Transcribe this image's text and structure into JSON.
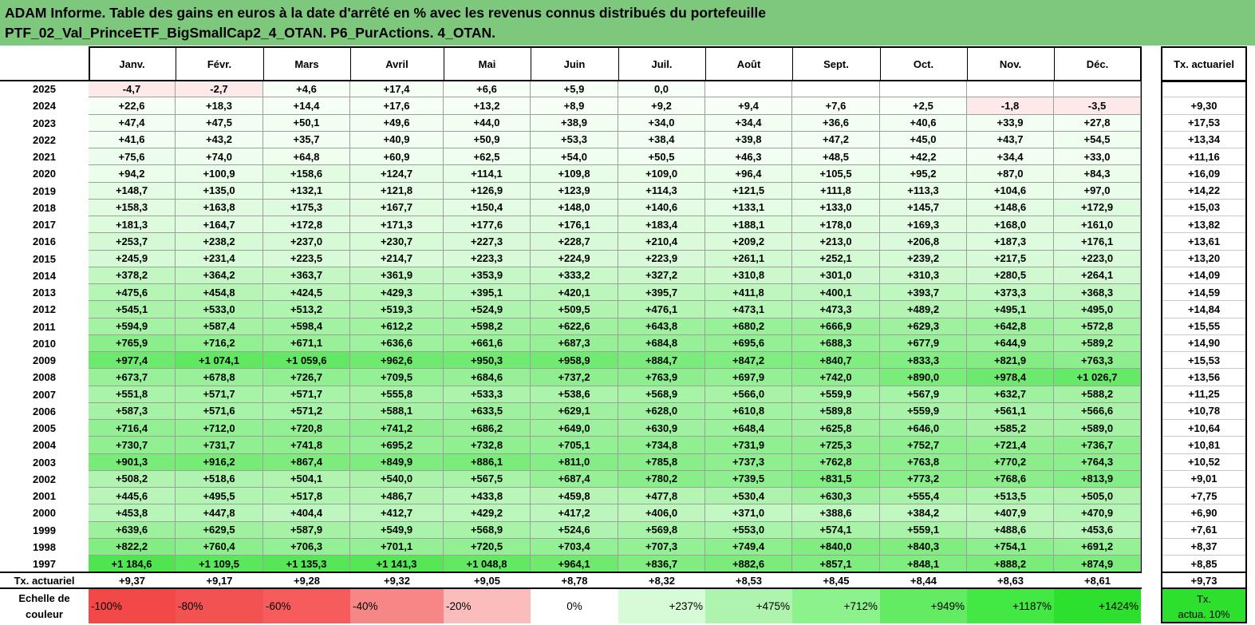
{
  "title_lines": [
    "ADAM Informe. Table des gains en euros à la date d'arrêté en % avec les revenus connus distribués du portefeuille",
    "PTF_02_Val_PrinceETF_BigSmallCap2_4_OTAN. P6_PurActions. 4_OTAN."
  ],
  "months": [
    "Janv.",
    "Févr.",
    "Mars",
    "Avril",
    "Mai",
    "Juin",
    "Juil.",
    "Août",
    "Sept.",
    "Oct.",
    "Nov.",
    "Déc."
  ],
  "annual_header": "Tx. actuariel",
  "rows": [
    {
      "year": "2025",
      "values": [
        "-4,7",
        "-2,7",
        "+4,6",
        "+17,4",
        "+6,6",
        "+5,9",
        "0,0",
        "",
        "",
        "",
        "",
        ""
      ],
      "rate": ""
    },
    {
      "year": "2024",
      "values": [
        "+22,6",
        "+18,3",
        "+14,4",
        "+17,6",
        "+13,2",
        "+8,9",
        "+9,2",
        "+9,4",
        "+7,6",
        "+2,5",
        "-1,8",
        "-3,5"
      ],
      "rate": "+9,30"
    },
    {
      "year": "2023",
      "values": [
        "+47,4",
        "+47,5",
        "+50,1",
        "+49,6",
        "+44,0",
        "+38,9",
        "+34,0",
        "+34,4",
        "+36,6",
        "+40,6",
        "+33,9",
        "+27,8"
      ],
      "rate": "+17,53"
    },
    {
      "year": "2022",
      "values": [
        "+41,6",
        "+43,2",
        "+35,7",
        "+40,9",
        "+50,9",
        "+53,3",
        "+38,4",
        "+39,8",
        "+47,2",
        "+45,0",
        "+43,7",
        "+54,5"
      ],
      "rate": "+13,34"
    },
    {
      "year": "2021",
      "values": [
        "+75,6",
        "+74,0",
        "+64,8",
        "+60,9",
        "+62,5",
        "+54,0",
        "+50,5",
        "+46,3",
        "+48,5",
        "+42,2",
        "+34,4",
        "+33,0"
      ],
      "rate": "+11,16"
    },
    {
      "year": "2020",
      "values": [
        "+94,2",
        "+100,9",
        "+158,6",
        "+124,7",
        "+114,1",
        "+109,8",
        "+109,0",
        "+96,4",
        "+105,5",
        "+95,2",
        "+87,0",
        "+84,3"
      ],
      "rate": "+16,09"
    },
    {
      "year": "2019",
      "values": [
        "+148,7",
        "+135,0",
        "+132,1",
        "+121,8",
        "+126,9",
        "+123,9",
        "+114,3",
        "+121,5",
        "+111,8",
        "+113,3",
        "+104,6",
        "+97,0"
      ],
      "rate": "+14,22"
    },
    {
      "year": "2018",
      "values": [
        "+158,3",
        "+163,8",
        "+175,3",
        "+167,7",
        "+150,4",
        "+148,0",
        "+140,6",
        "+133,1",
        "+133,0",
        "+145,7",
        "+148,6",
        "+172,9"
      ],
      "rate": "+15,03"
    },
    {
      "year": "2017",
      "values": [
        "+181,3",
        "+164,7",
        "+172,8",
        "+171,3",
        "+177,6",
        "+176,1",
        "+183,4",
        "+188,1",
        "+178,0",
        "+169,3",
        "+168,0",
        "+161,0"
      ],
      "rate": "+13,82"
    },
    {
      "year": "2016",
      "values": [
        "+253,7",
        "+238,2",
        "+237,0",
        "+230,7",
        "+227,3",
        "+228,7",
        "+210,4",
        "+209,2",
        "+213,0",
        "+206,8",
        "+187,3",
        "+176,1"
      ],
      "rate": "+13,61"
    },
    {
      "year": "2015",
      "values": [
        "+245,9",
        "+231,4",
        "+223,5",
        "+214,7",
        "+223,3",
        "+224,9",
        "+223,9",
        "+261,1",
        "+252,1",
        "+239,2",
        "+217,5",
        "+223,0"
      ],
      "rate": "+13,20"
    },
    {
      "year": "2014",
      "values": [
        "+378,2",
        "+364,2",
        "+363,7",
        "+361,9",
        "+353,9",
        "+333,2",
        "+327,2",
        "+310,8",
        "+301,0",
        "+310,3",
        "+280,5",
        "+264,1"
      ],
      "rate": "+14,09"
    },
    {
      "year": "2013",
      "values": [
        "+475,6",
        "+454,8",
        "+424,5",
        "+429,3",
        "+395,1",
        "+420,1",
        "+395,7",
        "+411,8",
        "+400,1",
        "+393,7",
        "+373,3",
        "+368,3"
      ],
      "rate": "+14,59"
    },
    {
      "year": "2012",
      "values": [
        "+545,1",
        "+533,0",
        "+513,2",
        "+519,3",
        "+524,9",
        "+509,5",
        "+476,1",
        "+473,1",
        "+473,3",
        "+489,2",
        "+495,1",
        "+495,0"
      ],
      "rate": "+14,84"
    },
    {
      "year": "2011",
      "values": [
        "+594,9",
        "+587,4",
        "+598,4",
        "+612,2",
        "+598,2",
        "+622,6",
        "+643,8",
        "+680,2",
        "+666,9",
        "+629,3",
        "+642,8",
        "+572,8"
      ],
      "rate": "+15,55"
    },
    {
      "year": "2010",
      "values": [
        "+765,9",
        "+716,2",
        "+671,1",
        "+636,6",
        "+661,6",
        "+687,3",
        "+684,8",
        "+695,6",
        "+688,3",
        "+677,9",
        "+644,9",
        "+589,2"
      ],
      "rate": "+14,90"
    },
    {
      "year": "2009",
      "values": [
        "+977,4",
        "+1 074,1",
        "+1 059,6",
        "+962,6",
        "+950,3",
        "+958,9",
        "+884,7",
        "+847,2",
        "+840,7",
        "+833,3",
        "+821,9",
        "+763,3"
      ],
      "rate": "+15,53"
    },
    {
      "year": "2008",
      "values": [
        "+673,7",
        "+678,8",
        "+726,7",
        "+709,5",
        "+684,6",
        "+737,2",
        "+763,9",
        "+697,9",
        "+742,0",
        "+890,0",
        "+978,4",
        "+1 026,7"
      ],
      "rate": "+13,56"
    },
    {
      "year": "2007",
      "values": [
        "+551,8",
        "+571,7",
        "+571,7",
        "+555,8",
        "+533,3",
        "+538,6",
        "+568,9",
        "+566,0",
        "+559,9",
        "+567,9",
        "+632,7",
        "+588,2"
      ],
      "rate": "+11,25"
    },
    {
      "year": "2006",
      "values": [
        "+587,3",
        "+571,6",
        "+571,2",
        "+588,1",
        "+633,5",
        "+629,1",
        "+628,0",
        "+610,8",
        "+589,8",
        "+559,9",
        "+561,1",
        "+566,6"
      ],
      "rate": "+10,78"
    },
    {
      "year": "2005",
      "values": [
        "+716,4",
        "+712,0",
        "+720,8",
        "+741,2",
        "+686,2",
        "+649,0",
        "+630,9",
        "+648,4",
        "+625,8",
        "+646,0",
        "+585,2",
        "+589,0"
      ],
      "rate": "+10,64"
    },
    {
      "year": "2004",
      "values": [
        "+730,7",
        "+731,7",
        "+741,8",
        "+695,2",
        "+732,8",
        "+705,1",
        "+734,8",
        "+731,9",
        "+725,3",
        "+752,7",
        "+721,4",
        "+736,7"
      ],
      "rate": "+10,81"
    },
    {
      "year": "2003",
      "values": [
        "+901,3",
        "+916,2",
        "+867,4",
        "+849,9",
        "+886,1",
        "+811,0",
        "+785,8",
        "+737,3",
        "+762,8",
        "+763,8",
        "+770,2",
        "+764,3"
      ],
      "rate": "+10,52"
    },
    {
      "year": "2002",
      "values": [
        "+508,2",
        "+518,6",
        "+504,1",
        "+540,0",
        "+567,5",
        "+687,4",
        "+780,2",
        "+739,5",
        "+831,5",
        "+773,2",
        "+768,6",
        "+813,9"
      ],
      "rate": "+9,01"
    },
    {
      "year": "2001",
      "values": [
        "+445,6",
        "+495,5",
        "+517,8",
        "+486,7",
        "+433,8",
        "+459,8",
        "+477,8",
        "+530,4",
        "+630,3",
        "+555,4",
        "+513,5",
        "+505,0"
      ],
      "rate": "+7,75"
    },
    {
      "year": "2000",
      "values": [
        "+453,8",
        "+447,8",
        "+404,4",
        "+412,7",
        "+429,2",
        "+417,2",
        "+406,0",
        "+371,0",
        "+388,6",
        "+384,2",
        "+407,9",
        "+470,9"
      ],
      "rate": "+6,90"
    },
    {
      "year": "1999",
      "values": [
        "+639,6",
        "+629,5",
        "+587,9",
        "+549,9",
        "+568,9",
        "+524,6",
        "+569,8",
        "+553,0",
        "+574,1",
        "+559,1",
        "+488,6",
        "+453,6"
      ],
      "rate": "+7,61"
    },
    {
      "year": "1998",
      "values": [
        "+822,2",
        "+760,4",
        "+706,3",
        "+701,1",
        "+720,5",
        "+703,4",
        "+707,3",
        "+749,4",
        "+840,0",
        "+840,3",
        "+754,1",
        "+691,2"
      ],
      "rate": "+8,37"
    },
    {
      "year": "1997",
      "values": [
        "+1 184,6",
        "+1 109,5",
        "+1 135,3",
        "+1 141,3",
        "+1 048,8",
        "+964,1",
        "+836,7",
        "+882,6",
        "+857,1",
        "+848,1",
        "+888,2",
        "+874,9"
      ],
      "rate": "+8,85"
    }
  ],
  "footer": {
    "label": "Tx. actuariel",
    "values": [
      "+9,37",
      "+9,17",
      "+9,28",
      "+9,32",
      "+9,05",
      "+8,78",
      "+8,32",
      "+8,53",
      "+8,45",
      "+8,44",
      "+8,63",
      "+8,61"
    ],
    "rate": "+9,73"
  },
  "scale": {
    "label_line1": "Echelle de",
    "label_line2": "couleur",
    "steps": [
      {
        "text": "-100%",
        "color": "#f24848",
        "align": "left"
      },
      {
        "text": "-80%",
        "color": "#f35252",
        "align": "left"
      },
      {
        "text": "-60%",
        "color": "#f65c5c",
        "align": "left"
      },
      {
        "text": "-40%",
        "color": "#f78787",
        "align": "left"
      },
      {
        "text": "-20%",
        "color": "#fbbcbc",
        "align": "left"
      },
      {
        "text": "0%",
        "color": "#ffffff",
        "align": "center"
      },
      {
        "text": "+237%",
        "color": "#d7fbd7",
        "align": "right"
      },
      {
        "text": "+475%",
        "color": "#aef3ae",
        "align": "right"
      },
      {
        "text": "+712%",
        "color": "#8cf28c",
        "align": "right"
      },
      {
        "text": "+949%",
        "color": "#63eb63",
        "align": "right"
      },
      {
        "text": "+1187%",
        "color": "#44e844",
        "align": "right"
      },
      {
        "text": "+1424%",
        "color": "#2ee02e",
        "align": "right"
      }
    ],
    "rate_line1": "Tx.",
    "rate_line2": "actua. 10%",
    "rate_color": "#2ee02e"
  },
  "colors": {
    "title_bg": "#7ec87e",
    "negative_bg": "#fde9e9",
    "max_positive": 1424
  }
}
